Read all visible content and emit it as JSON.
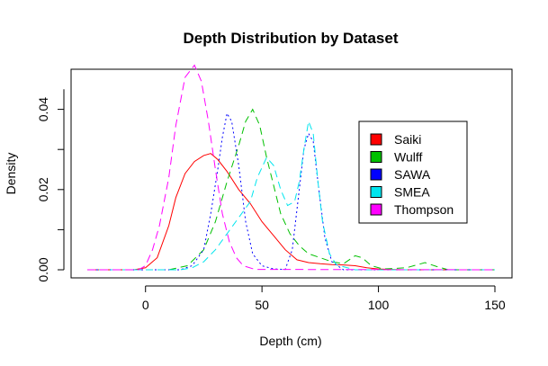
{
  "chart_data": {
    "type": "line",
    "title": "Depth Distribution by Dataset",
    "xlabel": "Depth (cm)",
    "ylabel": "Density",
    "xlim": [
      -25,
      150
    ],
    "ylim": [
      0,
      0.05
    ],
    "xticks": [
      "0",
      "50",
      "100",
      "150"
    ],
    "xtick_values": [
      0,
      50,
      100,
      150
    ],
    "yticks": [
      "0.00",
      "0.02",
      "0.04"
    ],
    "ytick_values": [
      0,
      0.02,
      0.04
    ],
    "grid": false,
    "legend_position": "right",
    "series": [
      {
        "name": "Saiki",
        "color": "#ff0000",
        "dash": "solid",
        "points": [
          [
            -25,
            0
          ],
          [
            -5,
            0
          ],
          [
            0,
            0.0005
          ],
          [
            5,
            0.003
          ],
          [
            10,
            0.011
          ],
          [
            13,
            0.018
          ],
          [
            17,
            0.024
          ],
          [
            21,
            0.027
          ],
          [
            25,
            0.0285
          ],
          [
            28,
            0.029
          ],
          [
            31,
            0.0275
          ],
          [
            35,
            0.0245
          ],
          [
            40,
            0.02
          ],
          [
            45,
            0.0165
          ],
          [
            50,
            0.012
          ],
          [
            55,
            0.0085
          ],
          [
            60,
            0.005
          ],
          [
            65,
            0.0025
          ],
          [
            70,
            0.0018
          ],
          [
            75,
            0.0015
          ],
          [
            80,
            0.0013
          ],
          [
            85,
            0.0012
          ],
          [
            90,
            0.001
          ],
          [
            95,
            0.0005
          ],
          [
            100,
            0.0002
          ],
          [
            110,
            0
          ],
          [
            150,
            0
          ]
        ]
      },
      {
        "name": "Wulff",
        "color": "#00c000",
        "dash": "8,5",
        "points": [
          [
            -25,
            0
          ],
          [
            10,
            0
          ],
          [
            18,
            0.001
          ],
          [
            25,
            0.005
          ],
          [
            30,
            0.012
          ],
          [
            35,
            0.022
          ],
          [
            40,
            0.031
          ],
          [
            43,
            0.037
          ],
          [
            46,
            0.04
          ],
          [
            49,
            0.036
          ],
          [
            52,
            0.028
          ],
          [
            55,
            0.021
          ],
          [
            58,
            0.014
          ],
          [
            62,
            0.009
          ],
          [
            66,
            0.006
          ],
          [
            70,
            0.004
          ],
          [
            75,
            0.003
          ],
          [
            80,
            0.002
          ],
          [
            85,
            0.0015
          ],
          [
            90,
            0.0035
          ],
          [
            93,
            0.003
          ],
          [
            97,
            0.001
          ],
          [
            102,
            0.0002
          ],
          [
            112,
            0.0005
          ],
          [
            120,
            0.0018
          ],
          [
            125,
            0.0008
          ],
          [
            130,
            0
          ],
          [
            150,
            0
          ]
        ]
      },
      {
        "name": "SAWA",
        "color": "#0000ff",
        "dash": "2,3",
        "points": [
          [
            -25,
            0
          ],
          [
            15,
            0
          ],
          [
            20,
            0.001
          ],
          [
            25,
            0.005
          ],
          [
            28,
            0.014
          ],
          [
            31,
            0.025
          ],
          [
            33,
            0.033
          ],
          [
            35,
            0.039
          ],
          [
            37,
            0.037
          ],
          [
            40,
            0.026
          ],
          [
            43,
            0.012
          ],
          [
            46,
            0.004
          ],
          [
            50,
            0.001
          ],
          [
            55,
            0.0002
          ],
          [
            60,
            0.0001
          ],
          [
            63,
            0.005
          ],
          [
            66,
            0.02
          ],
          [
            68,
            0.03
          ],
          [
            70,
            0.034
          ],
          [
            72,
            0.032
          ],
          [
            74,
            0.022
          ],
          [
            77,
            0.008
          ],
          [
            80,
            0.002
          ],
          [
            85,
            0
          ],
          [
            150,
            0
          ]
        ]
      },
      {
        "name": "SMEA",
        "color": "#00e5ee",
        "dash": "8,5",
        "points": [
          [
            -25,
            0
          ],
          [
            15,
            0
          ],
          [
            20,
            0.0005
          ],
          [
            25,
            0.002
          ],
          [
            30,
            0.005
          ],
          [
            35,
            0.009
          ],
          [
            40,
            0.013
          ],
          [
            45,
            0.017
          ],
          [
            48,
            0.023
          ],
          [
            52,
            0.028
          ],
          [
            55,
            0.026
          ],
          [
            58,
            0.02
          ],
          [
            61,
            0.016
          ],
          [
            64,
            0.017
          ],
          [
            66,
            0.022
          ],
          [
            68,
            0.03
          ],
          [
            70,
            0.037
          ],
          [
            72,
            0.034
          ],
          [
            74,
            0.022
          ],
          [
            76,
            0.012
          ],
          [
            79,
            0.004
          ],
          [
            82,
            0.0012
          ],
          [
            90,
            0
          ],
          [
            150,
            0
          ]
        ]
      },
      {
        "name": "Thompson",
        "color": "#ff00ff",
        "dash": "9,5",
        "points": [
          [
            -25,
            0
          ],
          [
            -3,
            0
          ],
          [
            0,
            0.001
          ],
          [
            3,
            0.005
          ],
          [
            6,
            0.011
          ],
          [
            10,
            0.023
          ],
          [
            13,
            0.036
          ],
          [
            17,
            0.048
          ],
          [
            21,
            0.051
          ],
          [
            24,
            0.047
          ],
          [
            27,
            0.037
          ],
          [
            30,
            0.025
          ],
          [
            33,
            0.014
          ],
          [
            36,
            0.007
          ],
          [
            39,
            0.003
          ],
          [
            42,
            0.001
          ],
          [
            47,
            0.0001
          ],
          [
            150,
            0
          ]
        ]
      }
    ]
  }
}
